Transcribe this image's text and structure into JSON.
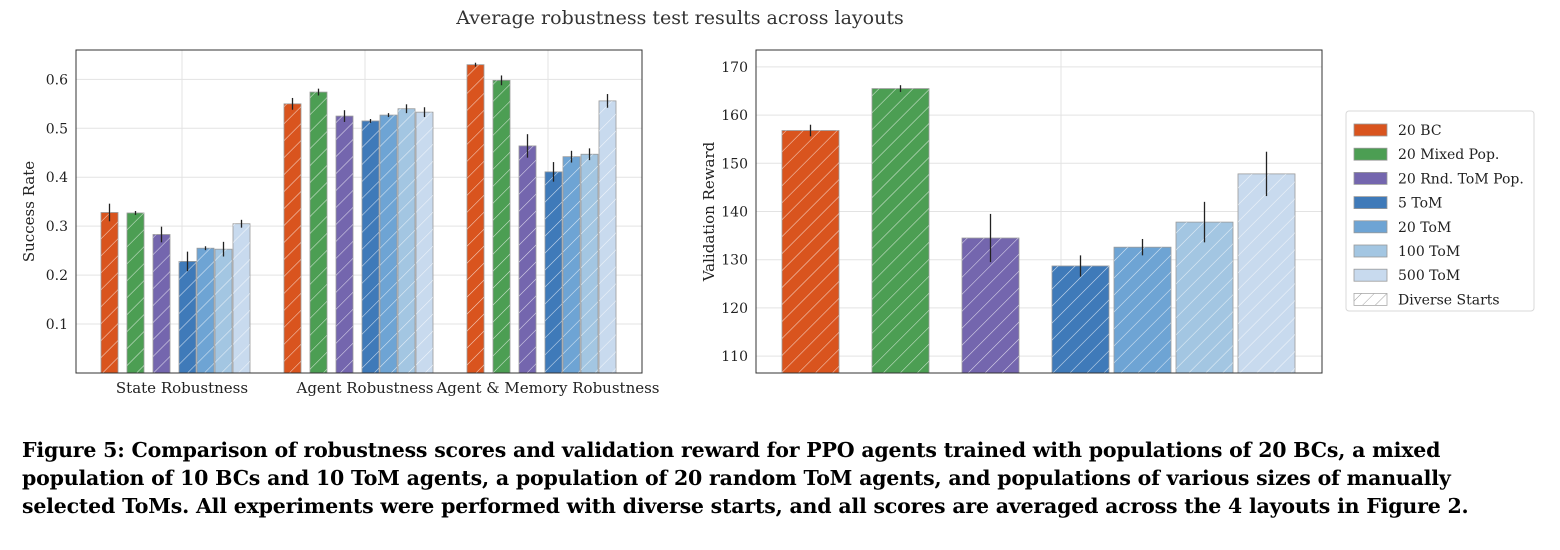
{
  "title": "Average robustness test results across layouts",
  "caption": "Figure 5: Comparison of robustness scores and validation reward for PPO agents trained with populations of 20 BCs, a mixed population of 10 BCs and 10 ToM agents, a population of 20 random ToM agents, and populations of various sizes of manually selected ToMs. All experiments were performed with diverse starts, and all scores are averaged across the 4 layouts in Figure 2.",
  "legend": {
    "placement": "right",
    "entries": [
      {
        "name": "20 BC",
        "color": "#d9541e"
      },
      {
        "name": "20 Mixed Pop.",
        "color": "#4c9e53"
      },
      {
        "name": "20 Rnd. ToM Pop.",
        "color": "#7466ae"
      },
      {
        "name": "5 ToM",
        "color": "#3f7ab9"
      },
      {
        "name": "20 ToM",
        "color": "#6ea4d4"
      },
      {
        "name": "100 ToM",
        "color": "#a3c6e2"
      },
      {
        "name": "500 ToM",
        "color": "#c8daee"
      },
      {
        "name": "Diverse Starts",
        "color": "#ffffff",
        "pattern": "hatch"
      }
    ]
  },
  "chart_data": [
    {
      "type": "bar",
      "ylabel": "Success Rate",
      "xlabel": "",
      "ylim": [
        0.0,
        0.66
      ],
      "yticks": [
        "0.1",
        "0.2",
        "0.3",
        "0.4",
        "0.5",
        "0.6"
      ],
      "categories": [
        "State Robustness",
        "Agent Robustness",
        "Agent & Memory Robustness"
      ],
      "grid": true,
      "series": [
        {
          "name": "20 BC",
          "values": [
            0.328,
            0.55,
            0.63
          ],
          "errors": [
            0.018,
            0.012,
            0.004
          ]
        },
        {
          "name": "20 Mixed Pop.",
          "values": [
            0.327,
            0.574,
            0.598
          ],
          "errors": [
            0.004,
            0.007,
            0.01
          ]
        },
        {
          "name": "20 Rnd. ToM Pop.",
          "values": [
            0.283,
            0.525,
            0.464
          ],
          "errors": [
            0.016,
            0.012,
            0.024
          ]
        },
        {
          "name": "5 ToM",
          "values": [
            0.228,
            0.515,
            0.411
          ],
          "errors": [
            0.02,
            0.004,
            0.02
          ]
        },
        {
          "name": "20 ToM",
          "values": [
            0.255,
            0.527,
            0.442
          ],
          "errors": [
            0.004,
            0.004,
            0.012
          ]
        },
        {
          "name": "100 ToM",
          "values": [
            0.253,
            0.54,
            0.447
          ],
          "errors": [
            0.015,
            0.009,
            0.012
          ]
        },
        {
          "name": "500 ToM",
          "values": [
            0.305,
            0.533,
            0.556
          ],
          "errors": [
            0.008,
            0.01,
            0.014
          ]
        }
      ]
    },
    {
      "type": "bar",
      "ylabel": "Validation Reward",
      "xlabel": "",
      "ylim": [
        106.5,
        173.5
      ],
      "yticks": [
        "110",
        "120",
        "130",
        "140",
        "150",
        "160",
        "170"
      ],
      "grid": true,
      "series": [
        {
          "name": "20 BC",
          "values": [
            156.8
          ],
          "errors": [
            1.2
          ]
        },
        {
          "name": "20 Mixed Pop.",
          "values": [
            165.5
          ],
          "errors": [
            0.7
          ]
        },
        {
          "name": "20 Rnd. ToM Pop.",
          "values": [
            134.5
          ],
          "errors": [
            5.0
          ]
        },
        {
          "name": "5 ToM",
          "values": [
            128.7
          ],
          "errors": [
            2.2
          ]
        },
        {
          "name": "20 ToM",
          "values": [
            132.6
          ],
          "errors": [
            1.7
          ]
        },
        {
          "name": "100 ToM",
          "values": [
            137.8
          ],
          "errors": [
            4.2
          ]
        },
        {
          "name": "500 ToM",
          "values": [
            147.8
          ],
          "errors": [
            4.6
          ]
        }
      ]
    }
  ]
}
